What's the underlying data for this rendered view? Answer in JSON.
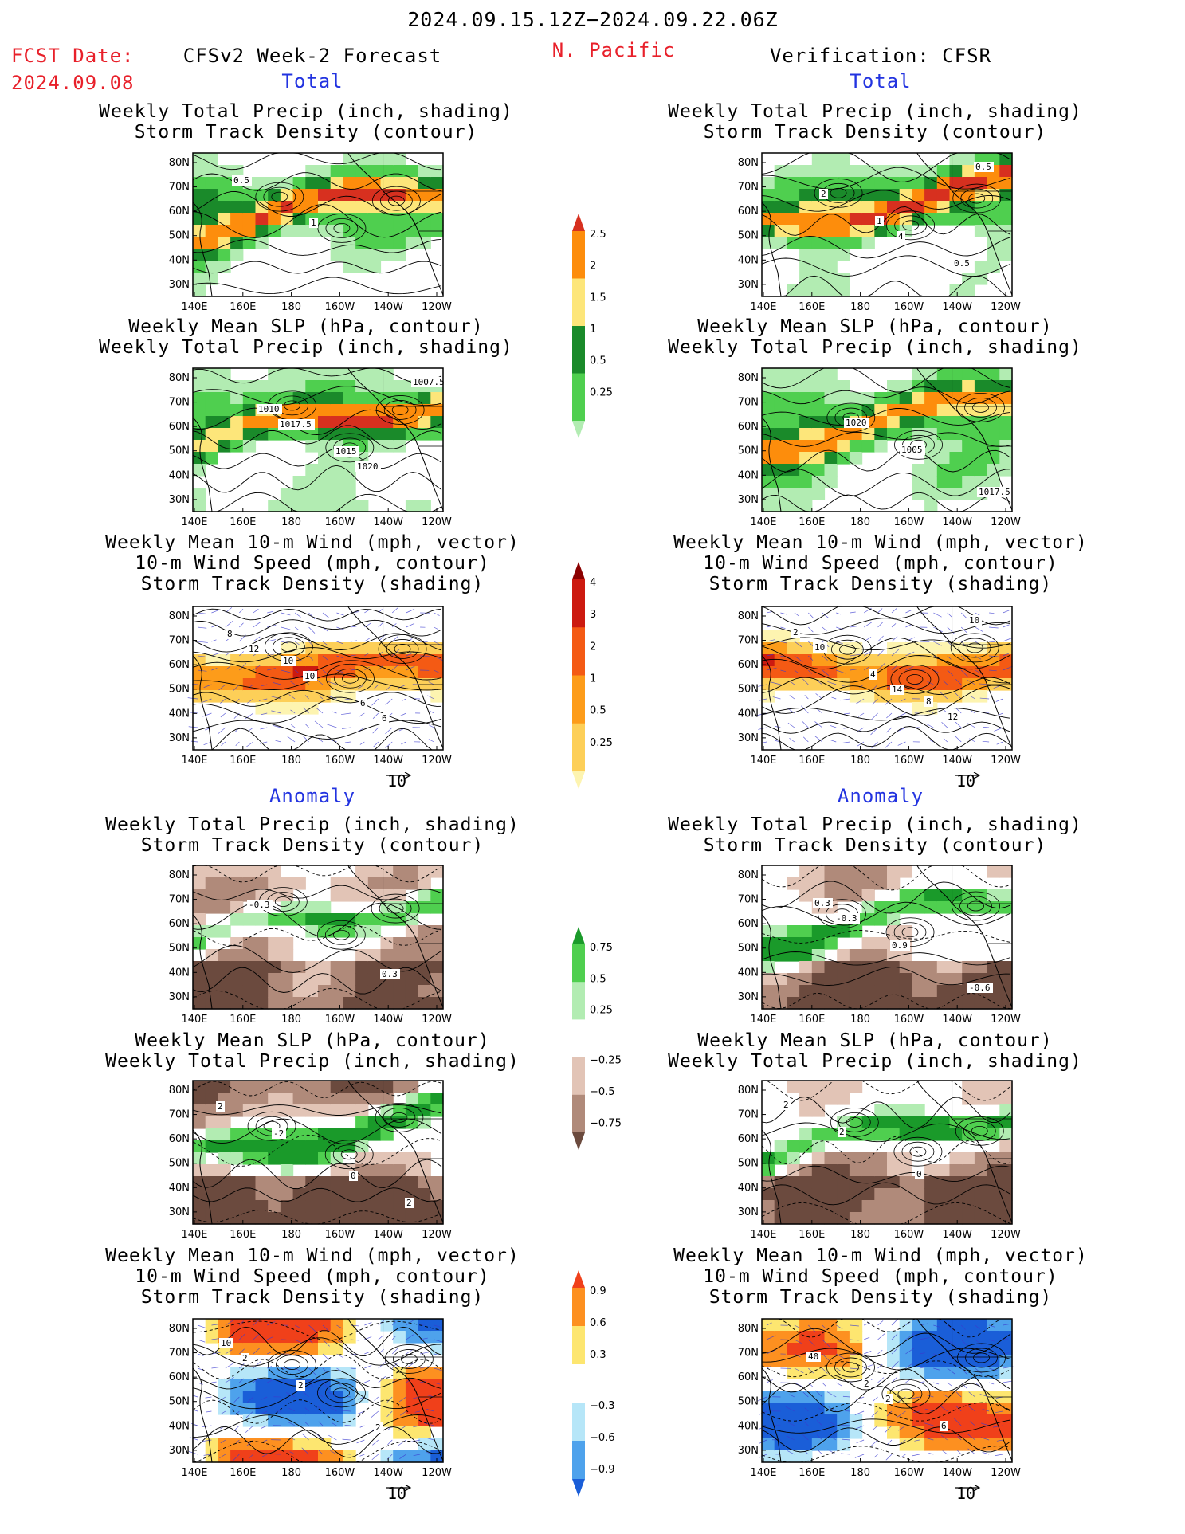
{
  "header": {
    "period": "2024.09.15.12Z−2024.09.22.06Z",
    "fcst_label": "FCST Date:",
    "fcst_date": "2024.09.08",
    "model": "CFSv2 Week-2 Forecast",
    "region": "N. Pacific",
    "verification": "Verification: CFSR"
  },
  "sections": {
    "total": "Total",
    "anomaly": "Anomaly"
  },
  "titles": {
    "precip_track": [
      "Weekly Total Precip (inch, shading)",
      "Storm Track Density (contour)"
    ],
    "slp_precip": [
      "Weekly Mean SLP (hPa, contour)",
      "Weekly Total Precip (inch, shading)"
    ],
    "wind_track": [
      "Weekly Mean 10-m Wind (mph, vector)",
      "10-m Wind Speed (mph, contour)",
      "Storm Track Density (shading)"
    ]
  },
  "axes": {
    "lat_labels": [
      "80N",
      "70N",
      "60N",
      "50N",
      "40N",
      "30N"
    ],
    "lon_labels": [
      "140E",
      "160E",
      "180",
      "160W",
      "140W",
      "120W"
    ]
  },
  "vector_ref": "10",
  "colorbars": {
    "precip_total": {
      "labels": [
        "2.5",
        "2",
        "1.5",
        "1",
        "0.5",
        "0.25"
      ],
      "colors": [
        "#d7301f",
        "#fd8d0c",
        "#fde67a",
        "#1a8a2a",
        "#4fcf4f",
        "#b2ecb2"
      ]
    },
    "track_total": {
      "labels": [
        "4",
        "3",
        "2",
        "1",
        "0.5",
        "0.25"
      ],
      "colors": [
        "#8b0000",
        "#cc1a10",
        "#f45a14",
        "#fd9c1a",
        "#fdcf58",
        "#fdf4b0"
      ]
    },
    "precip_anom": {
      "labels": [
        "0.75",
        "0.5",
        "0.25",
        "−0.25",
        "−0.5",
        "−0.75"
      ],
      "colors": [
        "#1a9a2a",
        "#4fcf4f",
        "#b2ecb2",
        "#ffffff",
        "#e2c4b6",
        "#b08a7a",
        "#6b4a3e"
      ]
    },
    "track_anom": {
      "labels": [
        "0.9",
        "0.6",
        "0.3",
        "−0.3",
        "−0.6",
        "−0.9"
      ],
      "colors": [
        "#f0401a",
        "#fd9020",
        "#fde670",
        "#ffffff",
        "#b6e6f8",
        "#4ea2ec",
        "#1a5ed8"
      ]
    }
  },
  "panels": {
    "left_precip_track": {
      "contour_labels": [
        "0.5",
        "1"
      ]
    },
    "left_slp_precip": {
      "contour_labels": [
        "1010",
        "1015",
        "1007.5",
        "1017.5",
        "1020"
      ]
    },
    "left_wind_track": {
      "contour_labels": [
        "10",
        "6",
        "8",
        "10",
        "6",
        "12"
      ]
    },
    "right_precip_track": {
      "contour_labels": [
        "1",
        "0.5",
        "2",
        "4",
        "0.5"
      ]
    },
    "right_slp_precip": {
      "contour_labels": [
        "1005",
        "1017.5",
        "1020"
      ]
    },
    "right_wind_track": {
      "contour_labels": [
        "8",
        "2",
        "4",
        "12",
        "10",
        "14",
        "10"
      ]
    },
    "left_anom_precip_track": {
      "contour_labels": [
        "0.3",
        "-0.3"
      ]
    },
    "left_anom_slp_precip": {
      "contour_labels": [
        "2",
        "-2",
        "0",
        "2"
      ]
    },
    "left_anom_wind_track": {
      "contour_labels": [
        "10",
        "2",
        "2",
        "2"
      ]
    },
    "right_anom_precip_track": {
      "contour_labels": [
        "0.3",
        "0.9",
        "-0.6",
        "-0.3"
      ]
    },
    "right_anom_slp_precip": {
      "contour_labels": [
        "2",
        "0",
        "2"
      ]
    },
    "right_anom_wind_track": {
      "contour_labels": [
        "2",
        "6",
        "40",
        "2"
      ]
    }
  }
}
